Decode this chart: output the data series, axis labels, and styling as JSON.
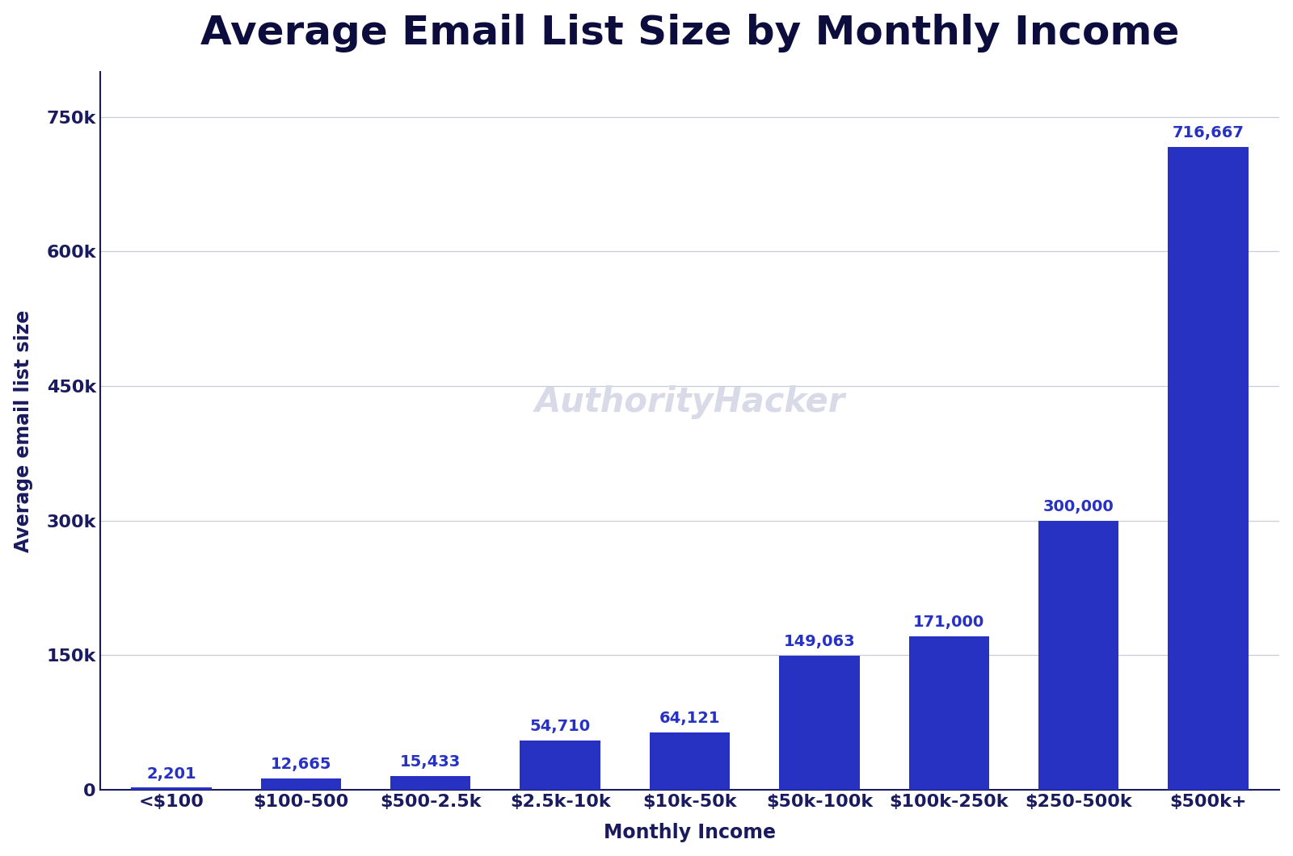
{
  "title": "Average Email List Size by Monthly Income",
  "xlabel": "Monthly Income",
  "ylabel": "Average email list size",
  "categories": [
    "<$100",
    "$100-500",
    "$500-2.5k",
    "$2.5k-10k",
    "$10k-50k",
    "$50k-100k",
    "$100k-250k",
    "$250-500k",
    "$500k+"
  ],
  "values": [
    2201,
    12665,
    15433,
    54710,
    64121,
    149063,
    171000,
    300000,
    716667
  ],
  "bar_color": "#2832C2",
  "label_color": "#2832C2",
  "watermark": "AuthorityHacker",
  "watermark_color": "#d8dae8",
  "background_color": "#ffffff",
  "ylim": [
    0,
    800000
  ],
  "yticks": [
    0,
    150000,
    300000,
    450000,
    600000,
    750000
  ],
  "ytick_labels": [
    "0",
    "150k",
    "300k",
    "450k",
    "600k",
    "750k"
  ],
  "title_fontsize": 36,
  "axis_label_fontsize": 17,
  "tick_fontsize": 16,
  "bar_label_fontsize": 14,
  "grid_color": "#c8ccd8",
  "spine_color": "#1a1a5e",
  "tick_label_color": "#1a1a5e",
  "title_color": "#0d0d3d"
}
